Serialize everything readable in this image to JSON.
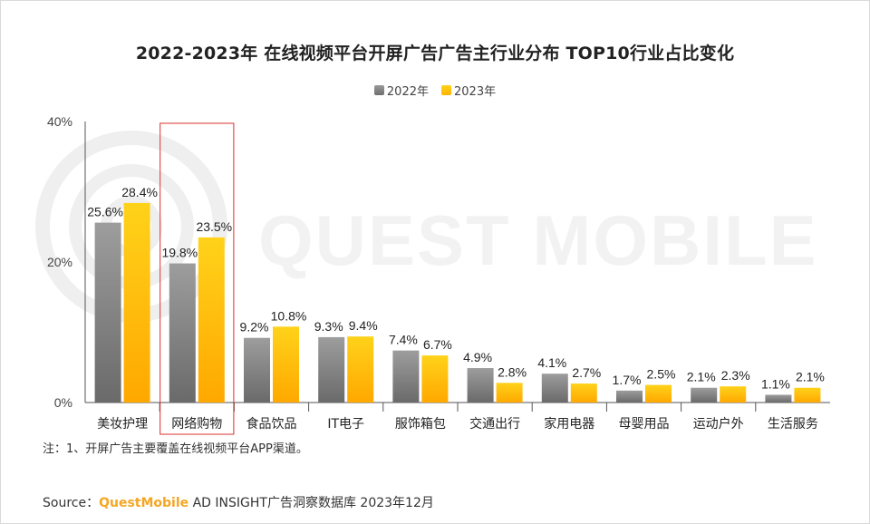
{
  "title": "2022-2023年 在线视频平台开屏广告广告主行业分布 TOP10行业占比变化",
  "legend": [
    {
      "label": "2022年",
      "color": "#7f7f7f"
    },
    {
      "label": "2023年",
      "color": "#ffc000"
    }
  ],
  "watermark": "QUEST MOBILE",
  "note": "注：1、开屏广告主要覆盖在线视频平台APP渠道。",
  "source": {
    "prefix": "Source：",
    "brand": "QuestMobile",
    "rest": " AD INSIGHT广告洞察数据库 2023年12月"
  },
  "highlight_category": "网络购物",
  "chart_data": {
    "type": "bar",
    "title": "2022-2023年 在线视频平台开屏广告广告主行业分布 TOP10行业占比变化",
    "categories": [
      "美妆护理",
      "网络购物",
      "食品饮品",
      "IT电子",
      "服饰箱包",
      "交通出行",
      "家用电器",
      "母婴用品",
      "运动户外",
      "生活服务"
    ],
    "series": [
      {
        "name": "2022年",
        "color": "#7f7f7f",
        "values": [
          25.6,
          19.8,
          9.2,
          9.3,
          7.4,
          4.9,
          4.1,
          1.7,
          2.1,
          1.1
        ]
      },
      {
        "name": "2023年",
        "color": "#ffc000",
        "values": [
          28.4,
          23.5,
          10.8,
          9.4,
          6.7,
          2.8,
          2.7,
          2.5,
          2.3,
          2.1
        ]
      }
    ],
    "yticks": [
      "0%",
      "20%",
      "40%"
    ],
    "ylim": [
      0,
      40
    ],
    "value_suffix": "%",
    "grid": false,
    "legend_position": "top-center"
  }
}
